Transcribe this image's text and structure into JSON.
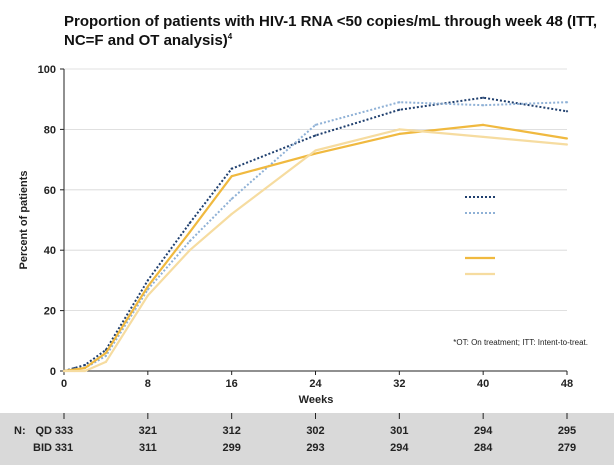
{
  "title_main": "Proportion of patients with HIV-1 RNA <50 copies/mL through week 48 (ITT, NC=F and OT analysis)",
  "title_sup": "4",
  "footnote": "*OT: On treatment; ITT: Intent-to-treat.",
  "colors": {
    "navy": "#1f3f6e",
    "light_blue": "#8fb1d6",
    "orange": "#f0b93f",
    "light_orange": "#f6dca0",
    "n_band": "#d9d9d9",
    "axis": "#222222",
    "grid": "#d6d6d6"
  },
  "n_table": {
    "label": "N:",
    "rows": [
      {
        "name": "QD",
        "values": [
          "333",
          "321",
          "312",
          "302",
          "301",
          "294",
          "295"
        ]
      },
      {
        "name": "BID",
        "values": [
          "331",
          "311",
          "299",
          "293",
          "294",
          "284",
          "279"
        ]
      }
    ]
  },
  "chart_data": {
    "type": "line",
    "title": "Proportion of patients with HIV-1 RNA <50 copies/mL through week 48 (ITT, NC=F and OT analysis)",
    "xlabel": "Weeks",
    "ylabel": "Percent of patients",
    "xlim": [
      0,
      48
    ],
    "ylim": [
      0,
      100
    ],
    "xticks": [
      0,
      8,
      16,
      24,
      32,
      40,
      48
    ],
    "yticks": [
      0,
      20,
      40,
      60,
      80,
      100
    ],
    "grid": false,
    "legend": "right",
    "series": [
      {
        "color": "#1f3f6e",
        "style": "dotted",
        "x": [
          0,
          1,
          2,
          4,
          8,
          12,
          16,
          24,
          32,
          40,
          48
        ],
        "y": [
          0,
          1,
          2,
          7,
          30,
          49,
          67,
          78,
          86.5,
          90.5,
          86
        ]
      },
      {
        "color": "#8fb1d6",
        "style": "dotted",
        "x": [
          0,
          1,
          2,
          4,
          8,
          12,
          16,
          24,
          32,
          40,
          48
        ],
        "y": [
          0,
          0.5,
          1,
          5,
          27,
          43,
          57,
          81.5,
          89,
          88,
          89
        ]
      },
      {
        "color": "#f0b93f",
        "style": "solid",
        "x": [
          0,
          1,
          2,
          4,
          8,
          12,
          16,
          24,
          32,
          40,
          48
        ],
        "y": [
          0,
          0.5,
          1,
          6,
          28,
          46,
          64.5,
          72,
          78.5,
          81.5,
          77
        ]
      },
      {
        "color": "#f6dca0",
        "style": "solid",
        "x": [
          0,
          1,
          2,
          4,
          8,
          12,
          16,
          24,
          32,
          40,
          48
        ],
        "y": [
          0,
          0,
          0,
          3,
          25,
          40,
          52,
          73,
          80,
          77.5,
          75
        ]
      }
    ]
  }
}
